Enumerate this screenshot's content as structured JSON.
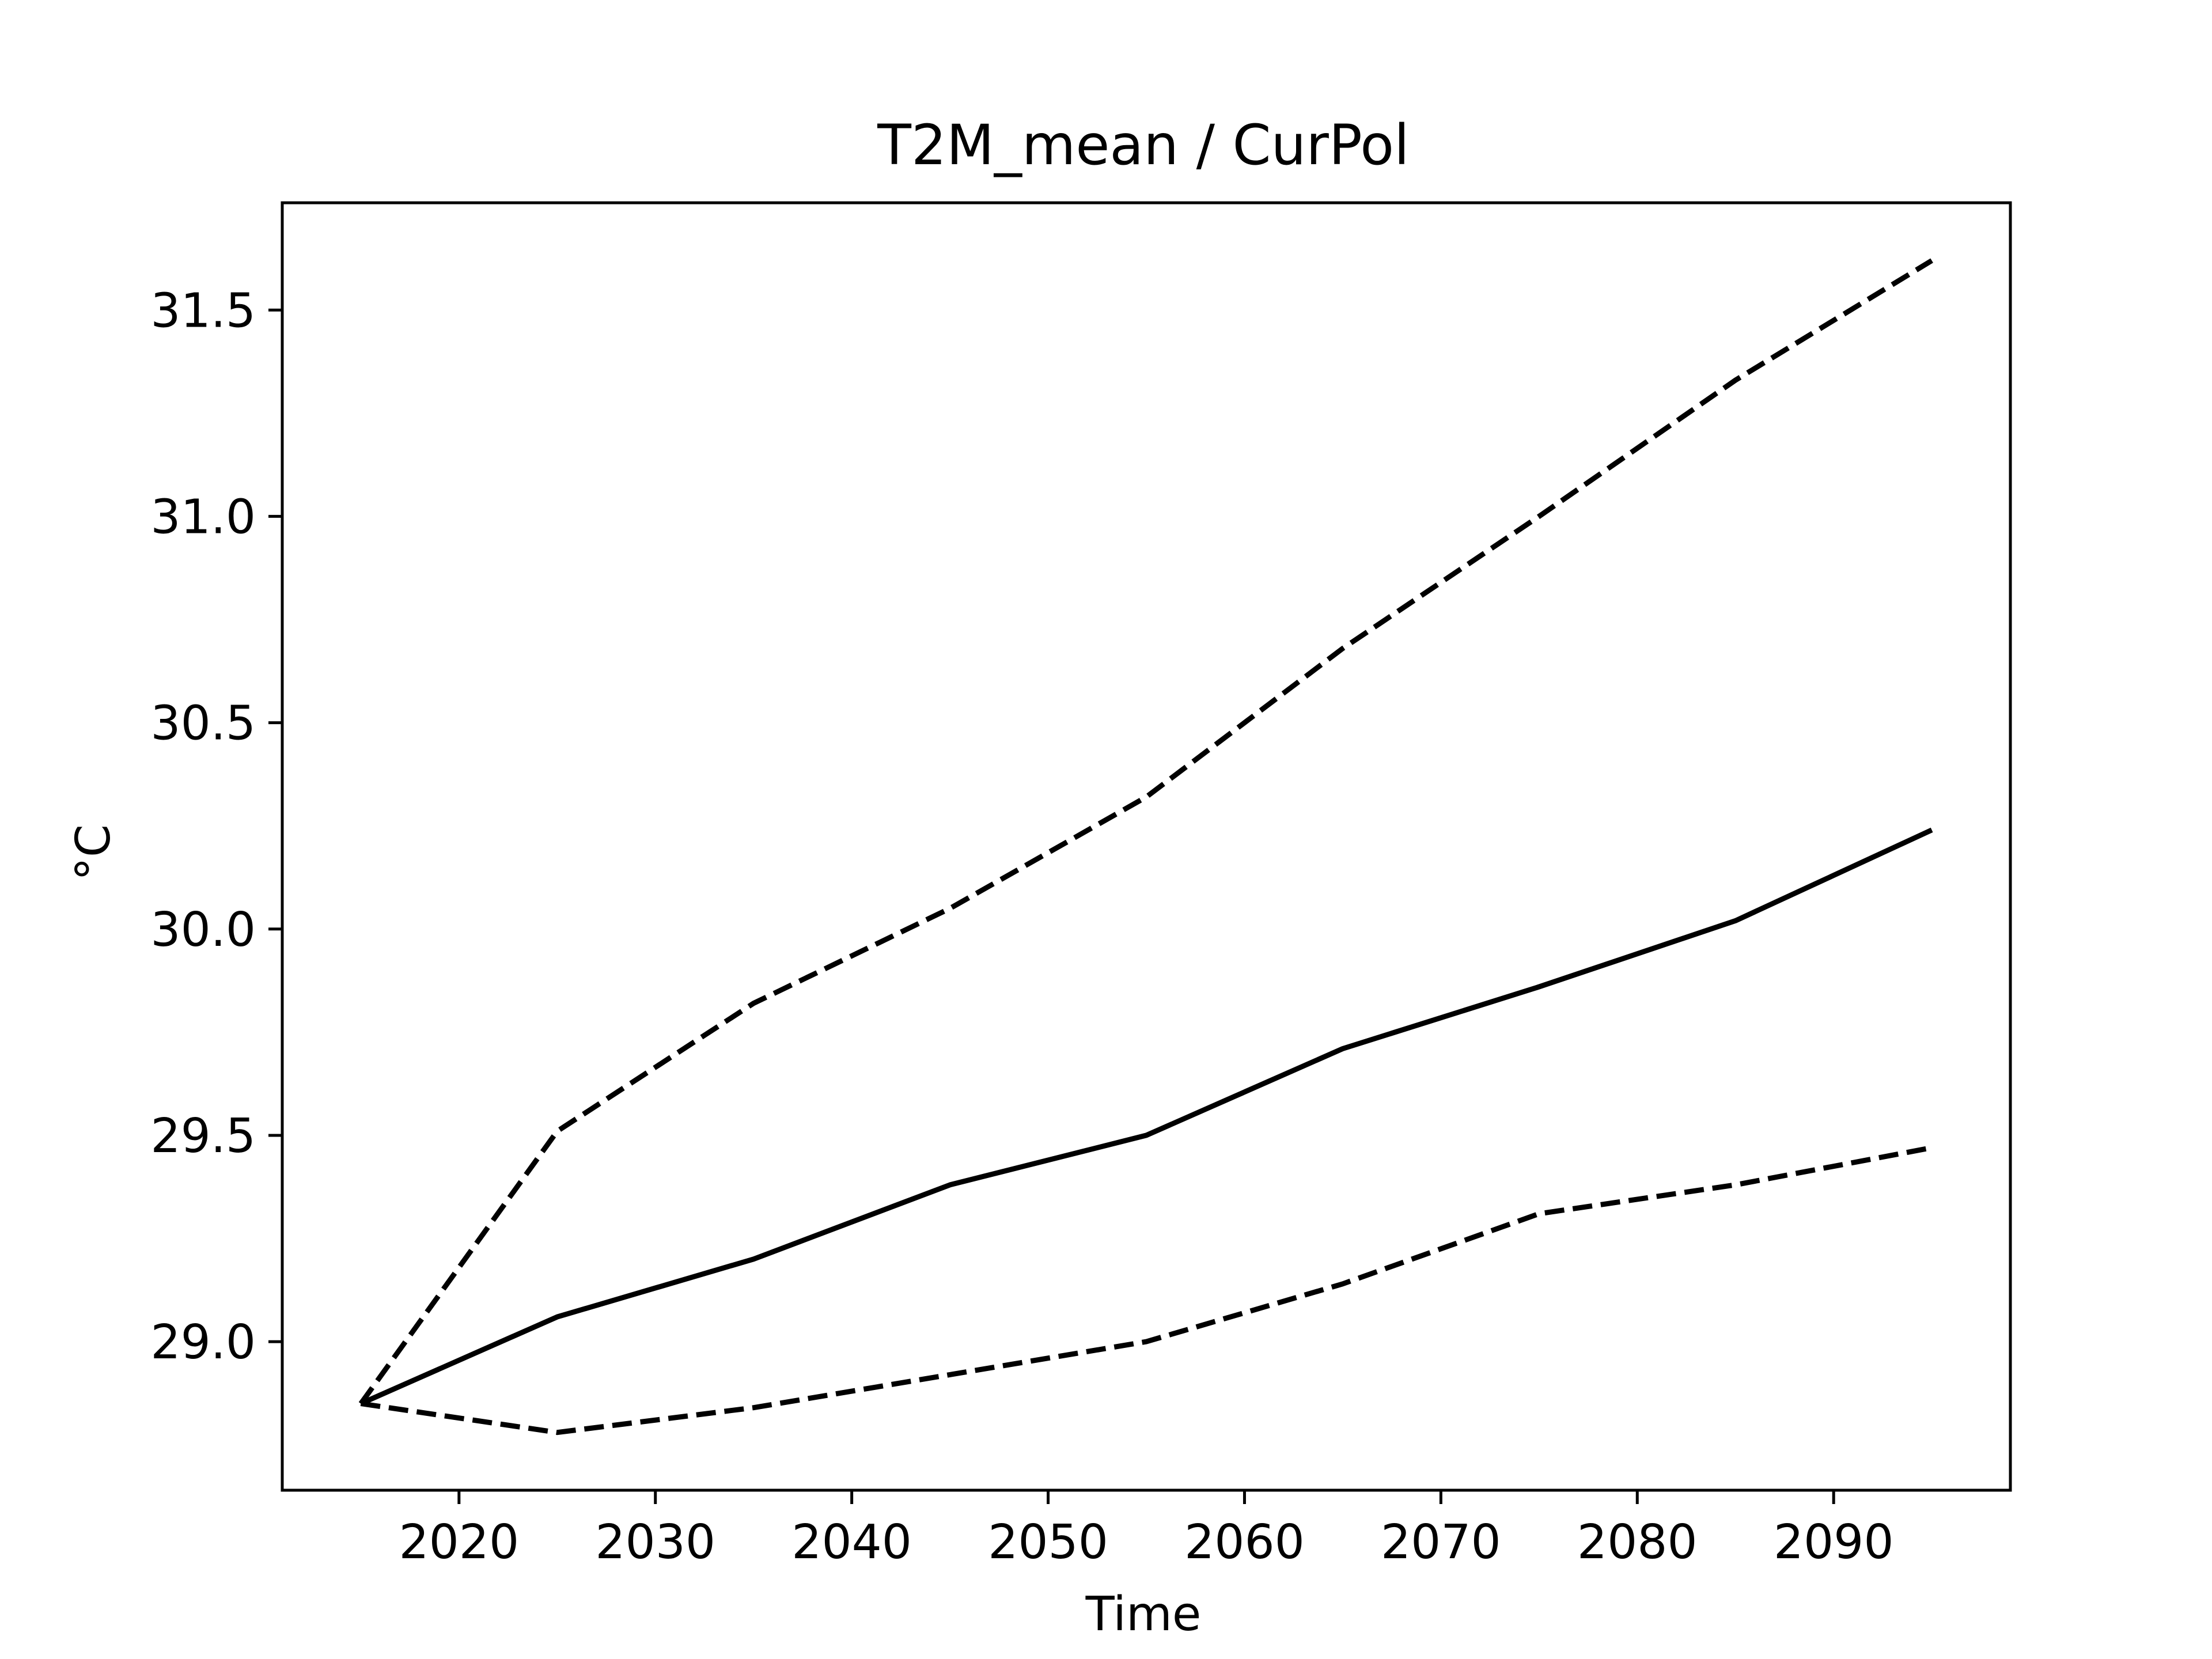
{
  "chart_data": {
    "type": "line",
    "title": "T2M_mean / CurPol",
    "xlabel": "Time",
    "ylabel": "°C",
    "x": [
      2015,
      2025,
      2035,
      2045,
      2055,
      2065,
      2075,
      2085,
      2095
    ],
    "xlim": [
      2011,
      2099
    ],
    "ylim": [
      28.64,
      31.76
    ],
    "xticks": [
      2020,
      2030,
      2040,
      2050,
      2060,
      2070,
      2080,
      2090
    ],
    "yticks": [
      29.0,
      29.5,
      30.0,
      30.5,
      31.0,
      31.5
    ],
    "ytick_labels": [
      "29.0",
      "29.5",
      "30.0",
      "30.5",
      "31.0",
      "31.5"
    ],
    "grid": false,
    "series": [
      {
        "style": "solid",
        "color": "#000000",
        "values": [
          28.85,
          29.06,
          29.2,
          29.38,
          29.5,
          29.71,
          29.86,
          30.02,
          30.24
        ]
      },
      {
        "style": "dashed",
        "color": "#000000",
        "values": [
          28.85,
          29.51,
          29.82,
          30.05,
          30.32,
          30.68,
          31.0,
          31.33,
          31.62
        ]
      },
      {
        "style": "dashed",
        "color": "#000000",
        "values": [
          28.85,
          28.78,
          28.84,
          28.92,
          29.0,
          29.14,
          29.31,
          29.38,
          29.47
        ]
      }
    ]
  }
}
